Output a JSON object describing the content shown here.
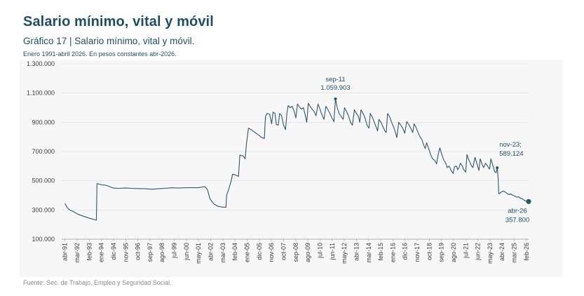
{
  "header": {
    "title": "Salario mínimo, vital y móvil",
    "chart_title": "Gráfico 17 | Salario mínimo, vital y móvil.",
    "subtitle": "Enero 1991-abril 2026. En pesos constantes abr-2026.",
    "source": "Fuente: Sec. de Trabajo, Empleo y Seguridad Social."
  },
  "colors": {
    "line": "#2f5668",
    "text": "#1f4e63",
    "panel": "#f7f7f8",
    "source": "#8a8a8a"
  },
  "chart_data": {
    "type": "line",
    "title": "Gráfico 17 | Salario mínimo, vital y móvil.",
    "subtitle": "Enero 1991-abril 2026. En pesos constantes abr-2026.",
    "xlabel": "",
    "ylabel": "",
    "ylim": [
      100000,
      1300000
    ],
    "y_ticks": [
      100000,
      300000,
      500000,
      700000,
      900000,
      1100000,
      1300000
    ],
    "y_tick_labels": [
      "100.000",
      "300.000",
      "500.000",
      "700.000",
      "900.000",
      "1.100.000",
      "1.300.000"
    ],
    "x_ticks": [
      {
        "t": 1991.25,
        "label": "abr-91"
      },
      {
        "t": 1992.17,
        "label": "mar-92"
      },
      {
        "t": 1993.08,
        "label": "feb-93"
      },
      {
        "t": 1994.0,
        "label": "ene-94"
      },
      {
        "t": 1994.92,
        "label": "dic-94"
      },
      {
        "t": 1995.83,
        "label": "nov-95"
      },
      {
        "t": 1996.75,
        "label": "oct-96"
      },
      {
        "t": 1997.67,
        "label": "sep-97"
      },
      {
        "t": 1998.58,
        "label": "ago-98"
      },
      {
        "t": 1999.5,
        "label": "jul-99"
      },
      {
        "t": 2000.42,
        "label": "jun-00"
      },
      {
        "t": 2001.33,
        "label": "may-01"
      },
      {
        "t": 2002.25,
        "label": "abr-02"
      },
      {
        "t": 2003.17,
        "label": "mar-03"
      },
      {
        "t": 2004.08,
        "label": "feb-04"
      },
      {
        "t": 2005.0,
        "label": "ene-05"
      },
      {
        "t": 2005.92,
        "label": "dic-05"
      },
      {
        "t": 2006.83,
        "label": "nov-06"
      },
      {
        "t": 2007.75,
        "label": "oct-07"
      },
      {
        "t": 2008.67,
        "label": "sep-08"
      },
      {
        "t": 2009.58,
        "label": "ago-09"
      },
      {
        "t": 2010.5,
        "label": "jul-10"
      },
      {
        "t": 2011.42,
        "label": "jun-11"
      },
      {
        "t": 2012.33,
        "label": "may-12"
      },
      {
        "t": 2013.25,
        "label": "abr-13"
      },
      {
        "t": 2014.17,
        "label": "mar-14"
      },
      {
        "t": 2015.08,
        "label": "feb-15"
      },
      {
        "t": 2016.0,
        "label": "ene-16"
      },
      {
        "t": 2016.92,
        "label": "dic-16"
      },
      {
        "t": 2017.83,
        "label": "nov-17"
      },
      {
        "t": 2018.75,
        "label": "oct-18"
      },
      {
        "t": 2019.67,
        "label": "sep-19"
      },
      {
        "t": 2020.58,
        "label": "ago-20"
      },
      {
        "t": 2021.5,
        "label": "jul-21"
      },
      {
        "t": 2022.42,
        "label": "jun-22"
      },
      {
        "t": 2023.33,
        "label": "may-23"
      },
      {
        "t": 2024.25,
        "label": "abr-24"
      },
      {
        "t": 2025.17,
        "label": "mar-25"
      },
      {
        "t": 2026.08,
        "label": "feb-26"
      }
    ],
    "xlim": [
      1991.0,
      2026.25
    ],
    "series": [
      {
        "points": [
          [
            1991.25,
            345000
          ],
          [
            1991.4,
            318000
          ],
          [
            1991.6,
            300000
          ],
          [
            1991.8,
            292000
          ],
          [
            1992.0,
            283000
          ],
          [
            1992.2,
            272000
          ],
          [
            1992.5,
            262000
          ],
          [
            1992.8,
            252000
          ],
          [
            1993.1,
            243000
          ],
          [
            1993.4,
            236000
          ],
          [
            1993.62,
            230000
          ],
          [
            1993.66,
            480000
          ],
          [
            1993.8,
            478000
          ],
          [
            1994.0,
            472000
          ],
          [
            1994.3,
            470000
          ],
          [
            1994.6,
            460000
          ],
          [
            1994.9,
            450000
          ],
          [
            1995.3,
            448000
          ],
          [
            1995.8,
            450000
          ],
          [
            1996.3,
            448000
          ],
          [
            1996.8,
            446000
          ],
          [
            1997.3,
            445000
          ],
          [
            1997.8,
            442000
          ],
          [
            1998.3,
            445000
          ],
          [
            1998.8,
            448000
          ],
          [
            1999.3,
            452000
          ],
          [
            1999.8,
            450000
          ],
          [
            2000.3,
            452000
          ],
          [
            2000.8,
            453000
          ],
          [
            2001.3,
            452000
          ],
          [
            2001.8,
            460000
          ],
          [
            2002.0,
            440000
          ],
          [
            2002.2,
            375000
          ],
          [
            2002.5,
            340000
          ],
          [
            2002.8,
            325000
          ],
          [
            2003.1,
            320000
          ],
          [
            2003.4,
            318000
          ],
          [
            2003.45,
            400000
          ],
          [
            2003.6,
            440000
          ],
          [
            2003.8,
            500000
          ],
          [
            2003.9,
            545000
          ],
          [
            2004.1,
            540000
          ],
          [
            2004.35,
            530000
          ],
          [
            2004.45,
            675000
          ],
          [
            2004.7,
            670000
          ],
          [
            2004.85,
            650000
          ],
          [
            2004.95,
            755000
          ],
          [
            2005.1,
            860000
          ],
          [
            2005.3,
            850000
          ],
          [
            2005.6,
            830000
          ],
          [
            2005.9,
            810000
          ],
          [
            2006.1,
            795000
          ],
          [
            2006.3,
            790000
          ],
          [
            2006.38,
            940000
          ],
          [
            2006.5,
            960000
          ],
          [
            2006.7,
            955000
          ],
          [
            2006.85,
            890000
          ],
          [
            2006.95,
            970000
          ],
          [
            2007.1,
            960000
          ],
          [
            2007.2,
            885000
          ],
          [
            2007.35,
            880000
          ],
          [
            2007.45,
            960000
          ],
          [
            2007.6,
            945000
          ],
          [
            2007.75,
            880000
          ],
          [
            2007.9,
            850000
          ],
          [
            2008.0,
            960000
          ],
          [
            2008.1,
            1015000
          ],
          [
            2008.25,
            1000000
          ],
          [
            2008.4,
            1010000
          ],
          [
            2008.55,
            975000
          ],
          [
            2008.68,
            930000
          ],
          [
            2008.8,
            1025000
          ],
          [
            2008.95,
            1005000
          ],
          [
            2009.1,
            990000
          ],
          [
            2009.25,
            1000000
          ],
          [
            2009.38,
            950000
          ],
          [
            2009.5,
            900000
          ],
          [
            2009.62,
            1030000
          ],
          [
            2009.75,
            1010000
          ],
          [
            2009.9,
            990000
          ],
          [
            2010.05,
            975000
          ],
          [
            2010.2,
            945000
          ],
          [
            2010.35,
            1025000
          ],
          [
            2010.5,
            990000
          ],
          [
            2010.65,
            950000
          ],
          [
            2010.8,
            920000
          ],
          [
            2010.95,
            1010000
          ],
          [
            2011.1,
            985000
          ],
          [
            2011.25,
            960000
          ],
          [
            2011.4,
            930000
          ],
          [
            2011.55,
            905000
          ],
          [
            2011.67,
            1059903
          ],
          [
            2011.8,
            1000000
          ],
          [
            2011.95,
            960000
          ],
          [
            2012.1,
            940000
          ],
          [
            2012.25,
            920000
          ],
          [
            2012.35,
            1000000
          ],
          [
            2012.5,
            975000
          ],
          [
            2012.65,
            945000
          ],
          [
            2012.8,
            900000
          ],
          [
            2012.95,
            880000
          ],
          [
            2013.1,
            985000
          ],
          [
            2013.25,
            960000
          ],
          [
            2013.4,
            940000
          ],
          [
            2013.5,
            900000
          ],
          [
            2013.6,
            985000
          ],
          [
            2013.75,
            960000
          ],
          [
            2013.9,
            930000
          ],
          [
            2014.05,
            880000
          ],
          [
            2014.2,
            860000
          ],
          [
            2014.3,
            960000
          ],
          [
            2014.45,
            935000
          ],
          [
            2014.6,
            900000
          ],
          [
            2014.75,
            865000
          ],
          [
            2014.85,
            840000
          ],
          [
            2014.95,
            920000
          ],
          [
            2015.1,
            900000
          ],
          [
            2015.25,
            870000
          ],
          [
            2015.4,
            840000
          ],
          [
            2015.5,
            830000
          ],
          [
            2015.6,
            960000
          ],
          [
            2015.75,
            940000
          ],
          [
            2015.9,
            900000
          ],
          [
            2016.05,
            870000
          ],
          [
            2016.2,
            830000
          ],
          [
            2016.3,
            795000
          ],
          [
            2016.45,
            900000
          ],
          [
            2016.6,
            880000
          ],
          [
            2016.75,
            860000
          ],
          [
            2016.9,
            825000
          ],
          [
            2017.05,
            905000
          ],
          [
            2017.2,
            885000
          ],
          [
            2017.35,
            860000
          ],
          [
            2017.5,
            830000
          ],
          [
            2017.6,
            890000
          ],
          [
            2017.75,
            865000
          ],
          [
            2017.9,
            830000
          ],
          [
            2018.05,
            800000
          ],
          [
            2018.2,
            780000
          ],
          [
            2018.35,
            740000
          ],
          [
            2018.45,
            720000
          ],
          [
            2018.55,
            760000
          ],
          [
            2018.7,
            720000
          ],
          [
            2018.85,
            680000
          ],
          [
            2019.0,
            650000
          ],
          [
            2019.15,
            640000
          ],
          [
            2019.3,
            615000
          ],
          [
            2019.45,
            690000
          ],
          [
            2019.55,
            725000
          ],
          [
            2019.7,
            680000
          ],
          [
            2019.85,
            640000
          ],
          [
            2020.0,
            620000
          ],
          [
            2020.1,
            590000
          ],
          [
            2020.25,
            600000
          ],
          [
            2020.4,
            570000
          ],
          [
            2020.55,
            550000
          ],
          [
            2020.65,
            595000
          ],
          [
            2020.8,
            600000
          ],
          [
            2020.9,
            575000
          ],
          [
            2021.0,
            590000
          ],
          [
            2021.1,
            620000
          ],
          [
            2021.25,
            600000
          ],
          [
            2021.35,
            575000
          ],
          [
            2021.5,
            560000
          ],
          [
            2021.6,
            680000
          ],
          [
            2021.7,
            650000
          ],
          [
            2021.85,
            620000
          ],
          [
            2021.95,
            600000
          ],
          [
            2022.05,
            590000
          ],
          [
            2022.2,
            660000
          ],
          [
            2022.3,
            630000
          ],
          [
            2022.4,
            600000
          ],
          [
            2022.5,
            570000
          ],
          [
            2022.6,
            650000
          ],
          [
            2022.75,
            610000
          ],
          [
            2022.85,
            590000
          ],
          [
            2023.0,
            620000
          ],
          [
            2023.15,
            600000
          ],
          [
            2023.3,
            580000
          ],
          [
            2023.4,
            650000
          ],
          [
            2023.5,
            620000
          ],
          [
            2023.6,
            590000
          ],
          [
            2023.7,
            560000
          ],
          [
            2023.8,
            555000
          ],
          [
            2023.88,
            589124
          ],
          [
            2023.95,
            520000
          ],
          [
            2024.0,
            410000
          ],
          [
            2024.15,
            420000
          ],
          [
            2024.3,
            430000
          ],
          [
            2024.45,
            425000
          ],
          [
            2024.6,
            415000
          ],
          [
            2024.75,
            405000
          ],
          [
            2024.9,
            410000
          ],
          [
            2025.05,
            400000
          ],
          [
            2025.2,
            395000
          ],
          [
            2025.35,
            388000
          ],
          [
            2025.5,
            390000
          ],
          [
            2025.65,
            380000
          ],
          [
            2025.8,
            375000
          ],
          [
            2025.95,
            365000
          ],
          [
            2026.1,
            360000
          ],
          [
            2026.25,
            357800
          ]
        ]
      }
    ],
    "annotations": [
      {
        "t": 2011.67,
        "v": 1059903,
        "label_top": "sep-11",
        "label_bottom": "1.059.903"
      },
      {
        "t": 2023.88,
        "v": 589124,
        "label_top": "nov-23;",
        "label_bottom": "589.124"
      },
      {
        "t": 2026.25,
        "v": 357800,
        "label_top": "abr-26",
        "label_bottom": "357.800"
      }
    ],
    "grid": true,
    "legend": "none"
  }
}
